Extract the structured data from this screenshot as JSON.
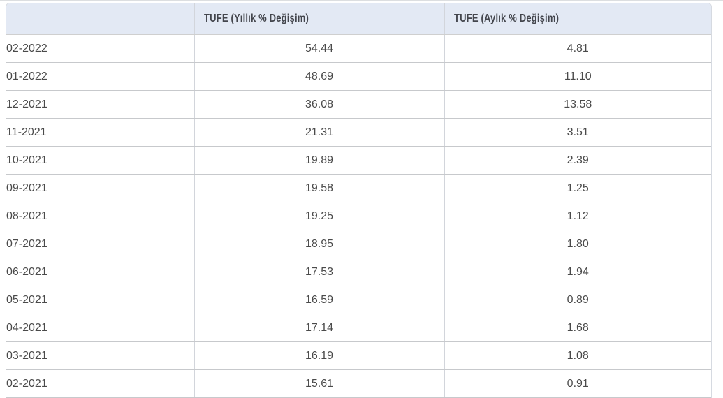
{
  "colors": {
    "header_background": "#e3e9f4",
    "header_text": "#43454c",
    "body_text": "#4a4a4a",
    "row_border": "#c7c9cc",
    "column_border": "#d2d5db",
    "outer_border": "#d6dae1"
  },
  "table": {
    "columns": [
      {
        "key": "period",
        "label": ""
      },
      {
        "key": "yearly",
        "label": "TÜFE (Yıllık % Değişim)"
      },
      {
        "key": "monthly",
        "label": "TÜFE (Aylık % Değişim)"
      }
    ],
    "rows": [
      {
        "period": "02-2022",
        "yearly": "54.44",
        "monthly": "4.81"
      },
      {
        "period": "01-2022",
        "yearly": "48.69",
        "monthly": "11.10"
      },
      {
        "period": "12-2021",
        "yearly": "36.08",
        "monthly": "13.58"
      },
      {
        "period": "11-2021",
        "yearly": "21.31",
        "monthly": "3.51"
      },
      {
        "period": "10-2021",
        "yearly": "19.89",
        "monthly": "2.39"
      },
      {
        "period": "09-2021",
        "yearly": "19.58",
        "monthly": "1.25"
      },
      {
        "period": "08-2021",
        "yearly": "19.25",
        "monthly": "1.12"
      },
      {
        "period": "07-2021",
        "yearly": "18.95",
        "monthly": "1.80"
      },
      {
        "period": "06-2021",
        "yearly": "17.53",
        "monthly": "1.94"
      },
      {
        "period": "05-2021",
        "yearly": "16.59",
        "monthly": "0.89"
      },
      {
        "period": "04-2021",
        "yearly": "17.14",
        "monthly": "1.68"
      },
      {
        "period": "03-2021",
        "yearly": "16.19",
        "monthly": "1.08"
      },
      {
        "period": "02-2021",
        "yearly": "15.61",
        "monthly": "0.91"
      }
    ]
  },
  "chart_data": {
    "type": "table",
    "title": "",
    "categories": [
      "02-2022",
      "01-2022",
      "12-2021",
      "11-2021",
      "10-2021",
      "09-2021",
      "08-2021",
      "07-2021",
      "06-2021",
      "05-2021",
      "04-2021",
      "03-2021",
      "02-2021"
    ],
    "series": [
      {
        "name": "TÜFE (Yıllık % Değişim)",
        "values": [
          54.44,
          48.69,
          36.08,
          21.31,
          19.89,
          19.58,
          19.25,
          18.95,
          17.53,
          16.59,
          17.14,
          16.19,
          15.61
        ]
      },
      {
        "name": "TÜFE (Aylık % Değişim)",
        "values": [
          4.81,
          11.1,
          13.58,
          3.51,
          2.39,
          1.25,
          1.12,
          1.8,
          1.94,
          0.89,
          1.68,
          1.08,
          0.91
        ]
      }
    ]
  }
}
